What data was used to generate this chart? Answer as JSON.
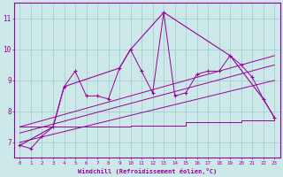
{
  "xlabel": "Windchill (Refroidissement éolien,°C)",
  "background_color": "#cce8e8",
  "grid_color": "#99cccc",
  "line_color": "#990099",
  "xlim": [
    -0.5,
    23.5
  ],
  "ylim": [
    6.5,
    11.5
  ],
  "yticks": [
    7,
    8,
    9,
    10,
    11
  ],
  "xticks": [
    0,
    1,
    2,
    3,
    4,
    5,
    6,
    7,
    8,
    9,
    10,
    11,
    12,
    13,
    14,
    15,
    16,
    17,
    18,
    19,
    20,
    21,
    22,
    23
  ],
  "series1_x": [
    0,
    1,
    2,
    3,
    4,
    5,
    6,
    7,
    8,
    9,
    10,
    11,
    12,
    13,
    14,
    15,
    16,
    17,
    18,
    19,
    20,
    21,
    22,
    23
  ],
  "series1_y": [
    6.9,
    6.8,
    7.2,
    7.5,
    8.8,
    9.3,
    8.5,
    8.5,
    8.4,
    9.4,
    10.0,
    9.3,
    8.6,
    11.2,
    8.5,
    8.6,
    9.2,
    9.3,
    9.3,
    9.8,
    9.5,
    9.1,
    8.4,
    7.8
  ],
  "series2_x": [
    0,
    3,
    4,
    9,
    10,
    13,
    19,
    22,
    23
  ],
  "series2_y": [
    6.9,
    7.5,
    8.8,
    9.4,
    10.0,
    11.2,
    9.8,
    8.4,
    7.8
  ],
  "trend1_x": [
    0,
    23
  ],
  "trend1_y": [
    7.0,
    9.0
  ],
  "trend2_x": [
    0,
    23
  ],
  "trend2_y": [
    7.3,
    9.5
  ],
  "trend3_x": [
    0,
    23
  ],
  "trend3_y": [
    7.5,
    9.8
  ],
  "step_x": [
    0,
    2,
    10,
    15,
    20,
    23
  ],
  "step_y": [
    7.5,
    7.5,
    7.55,
    7.65,
    7.7,
    7.75
  ]
}
